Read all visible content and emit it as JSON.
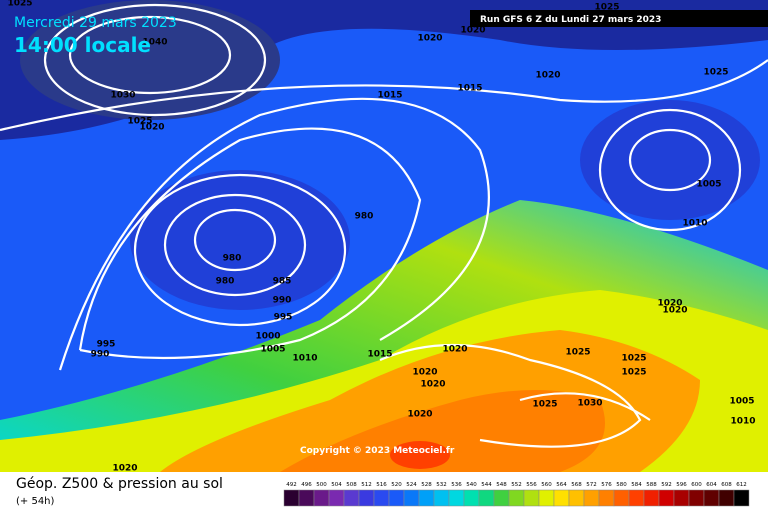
{
  "header": {
    "date": "Mercredi 29 mars 2023",
    "time": "14:00 locale",
    "run": "Run GFS 6 Z du Lundi 27 mars 2023"
  },
  "copyright": "Copyright © 2023 Meteociel.fr",
  "legend": {
    "title": "Géop. Z500 & pression au sol",
    "subtitle": "(+ 54h)",
    "ticks": [
      492,
      496,
      500,
      504,
      508,
      512,
      516,
      520,
      524,
      528,
      532,
      536,
      540,
      544,
      548,
      552,
      556,
      560,
      564,
      568,
      572,
      576,
      580,
      584,
      588,
      592,
      596,
      600,
      604,
      608,
      612
    ],
    "colors": [
      "#2a0030",
      "#4a0a5a",
      "#6a1a8a",
      "#7a2ab0",
      "#5a3ad0",
      "#3a3ae0",
      "#2a4af0",
      "#1a5af8",
      "#0a78f8",
      "#00a0f8",
      "#00c0f0",
      "#00d8e0",
      "#00e0b0",
      "#10d880",
      "#40d040",
      "#80d820",
      "#b0e010",
      "#e0f000",
      "#ffe000",
      "#ffc000",
      "#ffa000",
      "#ff8000",
      "#ff6000",
      "#ff4000",
      "#f02000",
      "#d00000",
      "#a80000",
      "#800000",
      "#600000",
      "#400000",
      "#000000"
    ]
  },
  "isobar_labels": [
    "1025",
    "1040",
    "1030",
    "1025",
    "1020",
    "1020",
    "1020",
    "1020",
    "1015",
    "1015",
    "1025",
    "1025",
    "1005",
    "1010",
    "980",
    "980",
    "980",
    "985",
    "990",
    "995",
    "1000",
    "1005",
    "1010",
    "995",
    "990",
    "1015",
    "1020",
    "1020",
    "1020",
    "1020",
    "1025",
    "1030",
    "1025",
    "1025",
    "1025",
    "1020",
    "1020",
    "1005",
    "1010",
    "1020"
  ]
}
